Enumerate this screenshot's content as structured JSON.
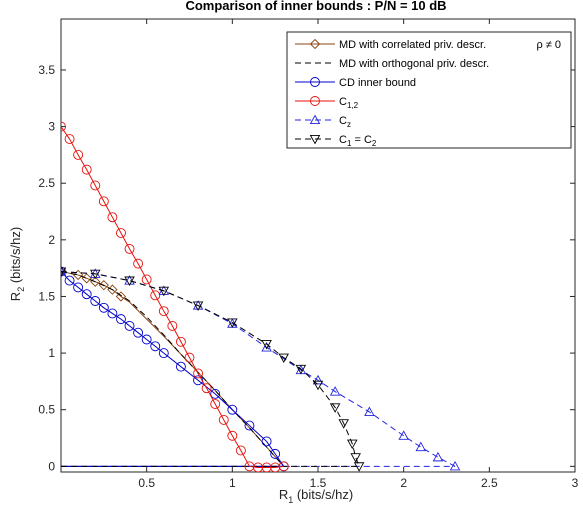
{
  "chart_data": {
    "type": "line",
    "title": "Comparison of inner bounds : P/N = 10 dB",
    "xlabel": {
      "main": "R",
      "sub": "1",
      "rest": " (bits/s/hz)"
    },
    "ylabel": {
      "main": "R",
      "sub": "2",
      "rest": " (bits/s/hz)"
    },
    "xlim": [
      0,
      3
    ],
    "ylim": [
      -0.05,
      3.95
    ],
    "xticks": [
      0.5,
      1,
      1.5,
      2,
      2.5,
      3
    ],
    "xtick_labels": [
      "0.5",
      "1",
      "1.5",
      "2",
      "2.5",
      "3"
    ],
    "yticks": [
      0,
      0.5,
      1,
      1.5,
      2,
      2.5,
      3,
      3.5
    ],
    "ytick_labels": [
      "0",
      "0.5",
      "1",
      "1.5",
      "2",
      "2.5",
      "3",
      "3.5"
    ],
    "grid": false,
    "legend_position": "top-right",
    "annotation": "ρ ≠ 0",
    "series": [
      {
        "name": "MD with correlated priv. descr.",
        "color": "#8B4513",
        "dash": "solid",
        "marker": "diamond",
        "x": [
          0,
          0.1,
          0.15,
          0.2,
          0.25,
          0.3,
          0.35,
          0.4,
          0.5,
          0.6,
          0.7,
          0.8,
          0.9,
          1.0,
          1.1,
          1.2,
          1.3
        ],
        "y": [
          1.72,
          1.69,
          1.66,
          1.63,
          1.6,
          1.56,
          1.5,
          1.45,
          1.3,
          1.15,
          0.99,
          0.83,
          0.67,
          0.5,
          0.34,
          0.17,
          0.0
        ],
        "marker_count": 7
      },
      {
        "name": "MD with orthogonal priv. descr.",
        "color": "#000000",
        "dash": "dashed",
        "marker": "none",
        "x": [
          0,
          0.1,
          0.2,
          0.3,
          0.4,
          0.5,
          0.6,
          0.7,
          0.8,
          0.9,
          1.0,
          1.1,
          1.2,
          1.3
        ],
        "y": [
          1.72,
          1.69,
          1.63,
          1.56,
          1.46,
          1.32,
          1.16,
          0.99,
          0.83,
          0.67,
          0.5,
          0.34,
          0.17,
          0.0
        ]
      },
      {
        "name": "CD inner bound",
        "color": "#0000CD",
        "dash": "solid",
        "marker": "circle",
        "x": [
          0,
          0.05,
          0.1,
          0.15,
          0.2,
          0.25,
          0.3,
          0.35,
          0.4,
          0.45,
          0.5,
          0.55,
          0.6,
          0.7,
          0.8,
          0.9,
          1.0,
          1.1,
          1.2,
          1.25,
          1.3
        ],
        "y": [
          1.72,
          1.64,
          1.58,
          1.52,
          1.46,
          1.4,
          1.35,
          1.3,
          1.24,
          1.18,
          1.12,
          1.06,
          1.0,
          0.88,
          0.76,
          0.64,
          0.5,
          0.36,
          0.22,
          0.11,
          0.0
        ],
        "baseline_to": 1.3
      },
      {
        "name": "C",
        "name_sub": "1,2",
        "color": "#E8120C",
        "dash": "solid",
        "marker": "circle",
        "x": [
          0,
          0.05,
          0.1,
          0.15,
          0.2,
          0.25,
          0.3,
          0.35,
          0.4,
          0.45,
          0.5,
          0.55,
          0.6,
          0.65,
          0.7,
          0.75,
          0.8,
          0.85,
          0.9,
          0.95,
          1.0,
          1.05,
          1.1,
          1.15,
          1.2,
          1.25,
          1.3
        ],
        "y": [
          3.0,
          2.89,
          2.75,
          2.62,
          2.48,
          2.34,
          2.2,
          2.06,
          1.92,
          1.79,
          1.65,
          1.51,
          1.37,
          1.24,
          1.1,
          0.96,
          0.82,
          0.69,
          0.55,
          0.41,
          0.27,
          0.14,
          0.0,
          -0.01,
          -0.01,
          -0.01,
          0.0
        ]
      },
      {
        "name": "C",
        "name_sub": "z",
        "color": "#2323E0",
        "dash": "dashed",
        "marker": "triangle-up",
        "x": [
          0,
          0.2,
          0.4,
          0.6,
          0.8,
          1.0,
          1.2,
          1.4,
          1.5,
          1.6,
          1.8,
          2.0,
          2.1,
          2.2,
          2.3
        ],
        "y": [
          1.72,
          1.7,
          1.64,
          1.55,
          1.42,
          1.26,
          1.05,
          0.85,
          0.76,
          0.66,
          0.48,
          0.27,
          0.17,
          0.08,
          0.0
        ]
      },
      {
        "name": "C",
        "name_sub": "1",
        "name_rest": " = C",
        "name_sub2": "2",
        "color": "#000000",
        "dash": "dashed",
        "marker": "triangle-down",
        "x": [
          0,
          0.2,
          0.4,
          0.6,
          0.8,
          1.0,
          1.2,
          1.3,
          1.4,
          1.5,
          1.6,
          1.65,
          1.7,
          1.72,
          1.74
        ],
        "y": [
          1.72,
          1.7,
          1.64,
          1.55,
          1.42,
          1.27,
          1.08,
          0.96,
          0.86,
          0.72,
          0.52,
          0.38,
          0.2,
          0.08,
          0.0
        ]
      }
    ]
  }
}
